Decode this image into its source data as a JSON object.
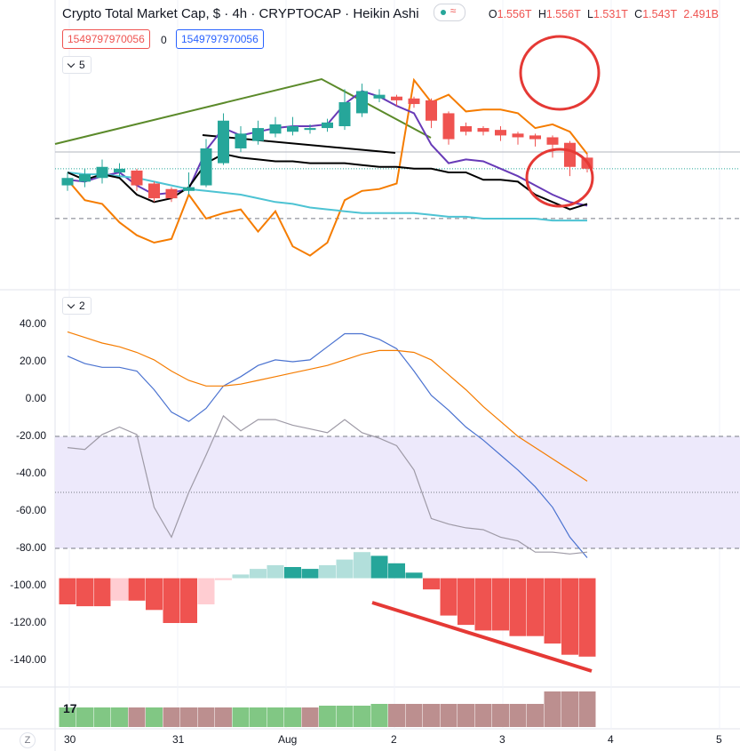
{
  "header": {
    "title": "Crypto Total Market Cap, $ · 4h · CRYPTOCAP · Heikin Ashi",
    "o_label": "O",
    "o_value": "1.556T",
    "h_label": "H",
    "h_value": "1.556T",
    "l_label": "L",
    "l_value": "1.531T",
    "c_label": "C",
    "c_value": "1.543T",
    "change": "2.491B",
    "pill_glyph": "≈"
  },
  "indicator_values": {
    "red": "1549797970056",
    "zero": "0",
    "blue": "1549797970056"
  },
  "panes": {
    "main_collapse": "5",
    "osc_collapse": "2"
  },
  "icons": [
    "chevron-down-icon",
    "tradingview-logo-icon"
  ],
  "logo_text": "17",
  "z_label": "Z",
  "colors": {
    "up_candle": "#26a69a",
    "down_candle": "#ef5350",
    "orange": "#f57c00",
    "purple": "#673ab7",
    "teal": "#4dc3d3",
    "black": "#000000",
    "olive": "#5b8a2a",
    "blue": "#4a72d0",
    "gray": "#9e9aa6",
    "band": "#ede9fb",
    "annotation": "#e53935"
  },
  "chart_data": [
    {
      "type": "candlestick",
      "style": "Heikin Ashi",
      "x_labels": [
        "30",
        "31",
        "Aug",
        "2",
        "3",
        "4",
        "5"
      ],
      "candles": [
        {
          "o": 0.43,
          "c": 0.47,
          "h": 0.5,
          "l": 0.4
        },
        {
          "o": 0.45,
          "c": 0.49,
          "h": 0.52,
          "l": 0.42
        },
        {
          "o": 0.47,
          "c": 0.53,
          "h": 0.57,
          "l": 0.44
        },
        {
          "o": 0.5,
          "c": 0.52,
          "h": 0.55,
          "l": 0.48
        },
        {
          "o": 0.51,
          "c": 0.43,
          "h": 0.52,
          "l": 0.4
        },
        {
          "o": 0.44,
          "c": 0.36,
          "h": 0.45,
          "l": 0.34
        },
        {
          "o": 0.41,
          "c": 0.36,
          "h": 0.42,
          "l": 0.34
        },
        {
          "o": 0.4,
          "c": 0.42,
          "h": 0.5,
          "l": 0.38
        },
        {
          "o": 0.43,
          "c": 0.63,
          "h": 0.68,
          "l": 0.42
        },
        {
          "o": 0.55,
          "c": 0.78,
          "h": 0.82,
          "l": 0.54
        },
        {
          "o": 0.63,
          "c": 0.71,
          "h": 0.75,
          "l": 0.61
        },
        {
          "o": 0.67,
          "c": 0.74,
          "h": 0.78,
          "l": 0.65
        },
        {
          "o": 0.71,
          "c": 0.76,
          "h": 0.8,
          "l": 0.69
        },
        {
          "o": 0.72,
          "c": 0.75,
          "h": 0.8,
          "l": 0.7
        },
        {
          "o": 0.73,
          "c": 0.74,
          "h": 0.76,
          "l": 0.71
        },
        {
          "o": 0.74,
          "c": 0.77,
          "h": 0.79,
          "l": 0.72
        },
        {
          "o": 0.75,
          "c": 0.88,
          "h": 0.95,
          "l": 0.73
        },
        {
          "o": 0.82,
          "c": 0.94,
          "h": 0.98,
          "l": 0.8
        },
        {
          "o": 0.9,
          "c": 0.92,
          "h": 0.95,
          "l": 0.88
        },
        {
          "o": 0.91,
          "c": 0.89,
          "h": 0.92,
          "l": 0.86
        },
        {
          "o": 0.9,
          "c": 0.87,
          "h": 0.91,
          "l": 0.85
        },
        {
          "o": 0.89,
          "c": 0.78,
          "h": 0.9,
          "l": 0.74
        },
        {
          "o": 0.82,
          "c": 0.68,
          "h": 0.83,
          "l": 0.65
        },
        {
          "o": 0.75,
          "c": 0.72,
          "h": 0.77,
          "l": 0.7
        },
        {
          "o": 0.74,
          "c": 0.72,
          "h": 0.75,
          "l": 0.7
        },
        {
          "o": 0.73,
          "c": 0.7,
          "h": 0.75,
          "l": 0.67
        },
        {
          "o": 0.71,
          "c": 0.69,
          "h": 0.72,
          "l": 0.65
        },
        {
          "o": 0.7,
          "c": 0.68,
          "h": 0.71,
          "l": 0.64
        },
        {
          "o": 0.69,
          "c": 0.65,
          "h": 0.7,
          "l": 0.58
        },
        {
          "o": 0.66,
          "c": 0.53,
          "h": 0.67,
          "l": 0.48
        },
        {
          "o": 0.58,
          "c": 0.52,
          "h": 0.6,
          "l": 0.5
        }
      ],
      "overlays": {
        "orange": [
          0.46,
          0.35,
          0.33,
          0.23,
          0.16,
          0.12,
          0.14,
          0.38,
          0.25,
          0.28,
          0.3,
          0.18,
          0.29,
          0.1,
          0.05,
          0.12,
          0.35,
          0.4,
          0.41,
          0.44,
          1.0,
          0.88,
          0.92,
          0.83,
          0.84,
          0.84,
          0.82,
          0.74,
          0.76,
          0.72,
          0.6
        ],
        "purple": [
          0.46,
          0.45,
          0.48,
          0.5,
          0.43,
          0.38,
          0.39,
          0.41,
          0.62,
          0.74,
          0.7,
          0.72,
          0.74,
          0.75,
          0.75,
          0.76,
          0.87,
          0.94,
          0.91,
          0.86,
          0.82,
          0.65,
          0.55,
          0.57,
          0.56,
          0.52,
          0.48,
          0.43,
          0.38,
          0.34,
          0.32
        ],
        "teal": [
          0.5,
          0.49,
          0.49,
          0.48,
          0.47,
          0.45,
          0.43,
          0.41,
          0.4,
          0.39,
          0.38,
          0.36,
          0.34,
          0.33,
          0.31,
          0.3,
          0.29,
          0.28,
          0.28,
          0.28,
          0.28,
          0.27,
          0.26,
          0.26,
          0.25,
          0.25,
          0.25,
          0.25,
          0.24,
          0.24,
          0.24
        ],
        "black": [
          0.5,
          0.46,
          0.49,
          0.47,
          0.38,
          0.34,
          0.36,
          0.42,
          0.55,
          0.6,
          0.58,
          0.57,
          0.56,
          0.56,
          0.55,
          0.55,
          0.55,
          0.54,
          0.53,
          0.53,
          0.52,
          0.52,
          0.5,
          0.5,
          0.46,
          0.46,
          0.45,
          0.38,
          0.34,
          0.3,
          0.33
        ]
      },
      "trendlines": [
        "olive rising line to peak then falling",
        "black descending line"
      ],
      "dotted_level": 0.52,
      "dashed_level": 0.02
    },
    {
      "type": "line",
      "y_ticks": [
        "40.00",
        "20.00",
        "0.00",
        "-20.00",
        "-40.00",
        "-60.00",
        "-80.00",
        "-100.00",
        "-120.00",
        "-140.00"
      ],
      "ylim": [
        -153,
        47
      ],
      "band": [
        -80,
        -20
      ],
      "band_mid": -50,
      "series": [
        {
          "color": "blue",
          "values": [
            23,
            19,
            17,
            17,
            15,
            5,
            -7,
            -12,
            -5,
            7,
            12,
            18,
            21,
            20,
            21,
            28,
            35,
            35,
            32,
            27,
            15,
            2,
            -6,
            -15,
            -22,
            -30,
            -38,
            -47,
            -58,
            -74,
            -85
          ]
        },
        {
          "color": "orange",
          "values": [
            36,
            33,
            30,
            28,
            25,
            21,
            15,
            10,
            7,
            7,
            8,
            10,
            12,
            14,
            16,
            18,
            21,
            24,
            26,
            26,
            25,
            21,
            13,
            5,
            -4,
            -12,
            -20,
            -26,
            -32,
            -38,
            -44
          ]
        },
        {
          "color": "gray",
          "values": [
            -26,
            -27,
            -19,
            -15,
            -19,
            -58,
            -74,
            -50,
            -30,
            -9,
            -17,
            -11,
            -11,
            -14,
            -16,
            -18,
            -11,
            -18,
            -21,
            -25,
            -38,
            -64,
            -67,
            -69,
            -70,
            -74,
            -76,
            -82,
            -82,
            -83,
            -82
          ]
        }
      ],
      "histogram": {
        "baseline": -96,
        "values": [
          -110,
          -111,
          -111,
          -108,
          -108,
          -113,
          -120,
          -120,
          -110,
          -97,
          -94,
          -91,
          -89,
          -90,
          -91,
          -89,
          -86,
          -82,
          -84,
          -88,
          -93,
          -102,
          -116,
          -121,
          -124,
          -124,
          -127,
          -127,
          -131,
          -137,
          -138
        ]
      }
    },
    {
      "type": "bar",
      "values": [
        0.55,
        0.55,
        0.55,
        0.55,
        0.55,
        0.55,
        0.55,
        0.55,
        0.55,
        0.55,
        0.55,
        0.55,
        0.55,
        0.55,
        0.55,
        0.6,
        0.6,
        0.6,
        0.65,
        0.65,
        0.65,
        0.65,
        0.65,
        0.65,
        0.65,
        0.65,
        0.65,
        0.65,
        1.0,
        1.0,
        1.0
      ],
      "bar_colors": [
        "green",
        "green",
        "green",
        "green",
        "red",
        "green",
        "red",
        "red",
        "red",
        "red",
        "green",
        "green",
        "green",
        "green",
        "red",
        "green",
        "green",
        "green",
        "green",
        "red",
        "red",
        "red",
        "red",
        "red",
        "red",
        "red",
        "red",
        "red",
        "red",
        "red",
        "red"
      ]
    }
  ]
}
